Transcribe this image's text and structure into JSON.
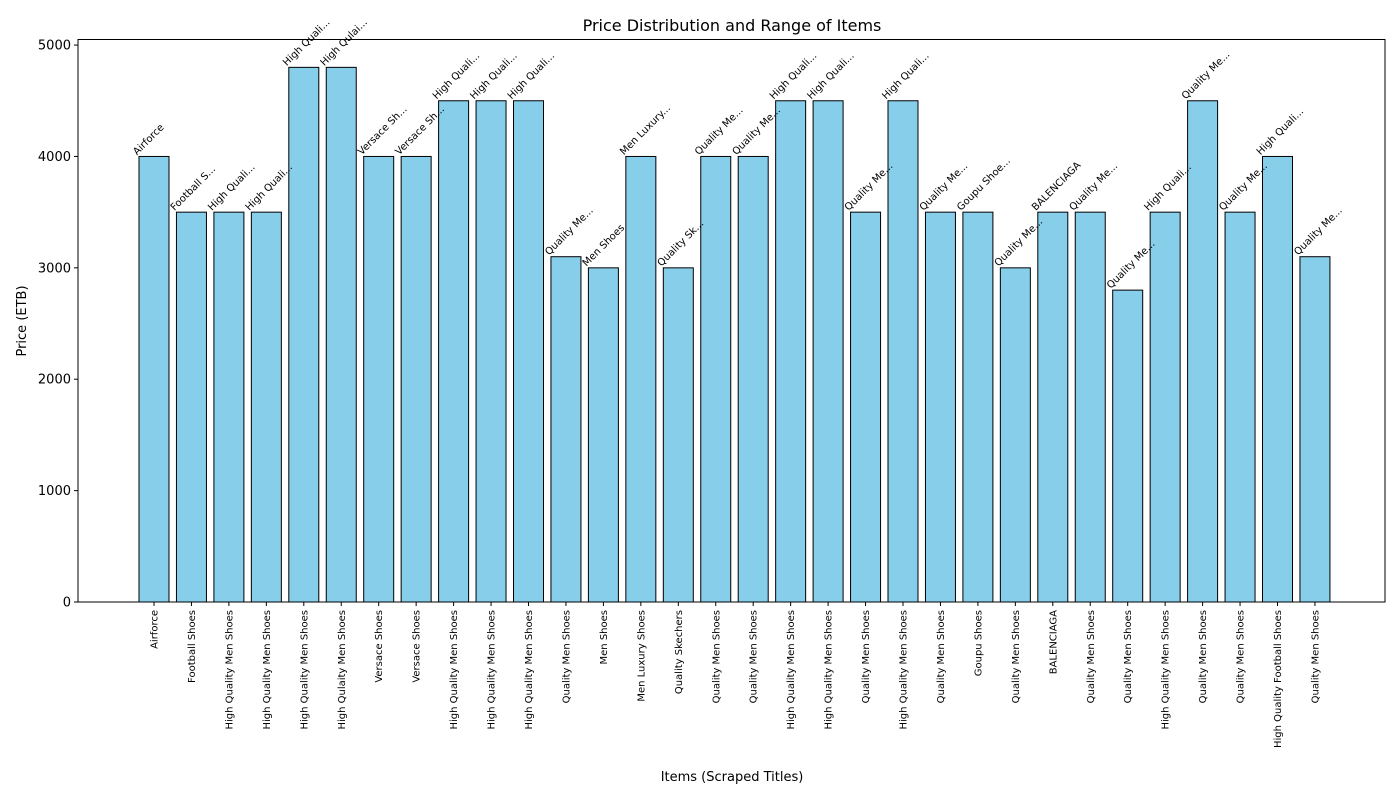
{
  "colors": {
    "bar_fill": "#87CEEB",
    "bar_edge": "#000000",
    "axis": "#000000",
    "background": "#ffffff"
  },
  "chart_data": {
    "type": "bar",
    "title": "Price Distribution and Range of Items",
    "xlabel": "Items (Scraped Titles)",
    "ylabel": "Price (ETB)",
    "ylim": [
      0,
      5050
    ],
    "yticks": [
      0,
      1000,
      2000,
      3000,
      4000,
      5000
    ],
    "grid": false,
    "categories": [
      "Airforce",
      "Football Shoes",
      "High Quality Men Shoes",
      "High Quality Men Shoes",
      "High Quality Men Shoes",
      "High Qulaity Men Shoes",
      "Versace Shoes",
      "Versace Shoes",
      "High Quality Men Shoes",
      "High Quality Men Shoes",
      "High Quality Men Shoes",
      "Quality Men Shoes",
      "Men Shoes",
      "Men Luxury Shoes",
      "Quality Skechers",
      "Quality Men Shoes",
      "Quality Men Shoes",
      "High Quality Men Shoes",
      "High Quality Men Shoes",
      "Quality Men Shoes",
      "High Quality Men Shoes",
      "Quality Men Shoes",
      "Goupu Shoes",
      "Quality Men Shoes",
      "BALENCIAGA",
      "Quality Men Shoes",
      "Quality Men Shoes",
      "High Quality Men Shoes",
      "Quality Men Shoes",
      "Quality Men Shoes",
      "High Quality Football Shoes",
      "Quality Men Shoes"
    ],
    "bar_labels": [
      "Airforce",
      "Football S...",
      "High Quali...",
      "High Quali...",
      "High Quali...",
      "High Qulai...",
      "Versace Sh...",
      "Versace Sh...",
      "High Quali...",
      "High Quali...",
      "High Quali...",
      "Quality Me...",
      "Men Shoes",
      "Men Luxury...",
      "Quality Sk...",
      "Quality Me...",
      "Quality Me...",
      "High Quali...",
      "High Quali...",
      "Quality Me...",
      "High Quali...",
      "Quality Me...",
      "Goupu Shoe...",
      "Quality Me...",
      "BALENCIAGA",
      "Quality Me...",
      "Quality Me...",
      "High Quali...",
      "Quality Me...",
      "Quality Me...",
      "High Quali...",
      "Quality Me..."
    ],
    "values": [
      4000,
      3500,
      3500,
      3500,
      4800,
      4800,
      4000,
      4000,
      4500,
      4500,
      4500,
      3100,
      3000,
      4000,
      3000,
      4000,
      4000,
      4500,
      4500,
      3500,
      4500,
      3500,
      3500,
      3000,
      3500,
      3500,
      2800,
      3500,
      4500,
      3500,
      4000,
      3100
    ]
  }
}
